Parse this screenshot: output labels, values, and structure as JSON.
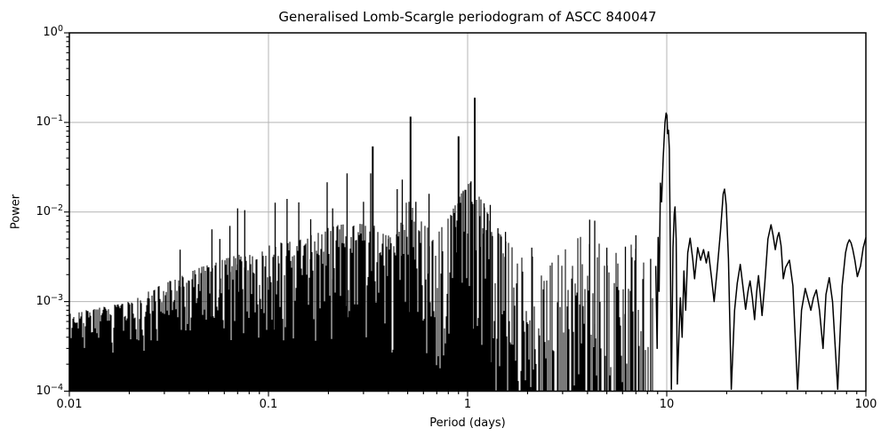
{
  "chart_data": {
    "type": "line",
    "title": "Generalised Lomb-Scargle periodogram of ASCC 840047",
    "xlabel": "Period (days)",
    "ylabel": "Power",
    "xscale": "log",
    "yscale": "log",
    "xlim": [
      0.01,
      100
    ],
    "ylim": [
      0.0001,
      1
    ],
    "grid": true,
    "legend": "none",
    "colors": {
      "line": "#000000",
      "grid": "#b4b4b4",
      "background": "#ffffff",
      "spine": "#000000"
    },
    "x_ticks": [
      {
        "value": 0.01,
        "label": "0.01"
      },
      {
        "value": 0.1,
        "label": "0.1"
      },
      {
        "value": 1,
        "label": "1"
      },
      {
        "value": 10,
        "label": "10"
      },
      {
        "value": 100,
        "label": "100"
      }
    ],
    "y_ticks": [
      {
        "value": 1,
        "base": "10",
        "exp": "0"
      },
      {
        "value": 0.1,
        "base": "10",
        "exp": "−1"
      },
      {
        "value": 0.01,
        "base": "10",
        "exp": "−2"
      },
      {
        "value": 0.001,
        "base": "10",
        "exp": "−3"
      },
      {
        "value": 0.0001,
        "base": "10",
        "exp": "−4"
      }
    ],
    "noise_floor": 0.0001,
    "dense_region": {
      "max_period": 8.8,
      "envelope": [
        [
          0.01,
          0.00075
        ],
        [
          0.014,
          0.00085
        ],
        [
          0.02,
          0.001
        ],
        [
          0.03,
          0.0016
        ],
        [
          0.045,
          0.0024
        ],
        [
          0.06,
          0.003
        ],
        [
          0.08,
          0.0036
        ],
        [
          0.11,
          0.0045
        ],
        [
          0.15,
          0.005
        ],
        [
          0.2,
          0.007
        ],
        [
          0.27,
          0.0075
        ],
        [
          0.35,
          0.007
        ],
        [
          0.42,
          0.005
        ],
        [
          0.5,
          0.014
        ],
        [
          0.58,
          0.008
        ],
        [
          0.7,
          0.0055
        ],
        [
          0.85,
          0.011
        ],
        [
          1.0,
          0.022
        ],
        [
          1.1,
          0.02
        ],
        [
          1.25,
          0.01
        ],
        [
          1.5,
          0.0055
        ],
        [
          2.0,
          0.0042
        ],
        [
          3.0,
          0.004
        ],
        [
          4.2,
          0.0065
        ],
        [
          5.0,
          0.004
        ],
        [
          6.0,
          0.0042
        ],
        [
          7.0,
          0.0045
        ],
        [
          8.0,
          0.0032
        ],
        [
          8.8,
          0.0026
        ]
      ]
    },
    "major_peaks": [
      [
        0.036,
        0.0038
      ],
      [
        0.052,
        0.0064
      ],
      [
        0.057,
        0.005
      ],
      [
        0.064,
        0.007
      ],
      [
        0.07,
        0.011
      ],
      [
        0.076,
        0.0105
      ],
      [
        0.108,
        0.0127
      ],
      [
        0.124,
        0.014
      ],
      [
        0.142,
        0.0128
      ],
      [
        0.163,
        0.0083
      ],
      [
        0.197,
        0.0215
      ],
      [
        0.21,
        0.011
      ],
      [
        0.248,
        0.027
      ],
      [
        0.3,
        0.013
      ],
      [
        0.326,
        0.027
      ],
      [
        0.334,
        0.054
      ],
      [
        0.4,
        0.005
      ],
      [
        0.443,
        0.018
      ],
      [
        0.47,
        0.023
      ],
      [
        0.517,
        0.116
      ],
      [
        0.55,
        0.013
      ],
      [
        0.64,
        0.016
      ],
      [
        0.87,
        0.0068
      ],
      [
        0.9,
        0.07
      ],
      [
        0.95,
        0.0167
      ],
      [
        1.04,
        0.022
      ],
      [
        1.086,
        0.189
      ],
      [
        1.15,
        0.009
      ],
      [
        1.21,
        0.0125
      ],
      [
        1.3,
        0.012
      ],
      [
        1.42,
        0.0066
      ],
      [
        1.55,
        0.006
      ],
      [
        2.1,
        0.004
      ],
      [
        4.1,
        0.0082
      ],
      [
        4.35,
        0.008
      ],
      [
        5.0,
        0.004
      ],
      [
        6.2,
        0.0041
      ],
      [
        7.0,
        0.0055
      ],
      [
        8.3,
        0.003
      ]
    ],
    "smooth_section": [
      [
        8.8,
        0.0025
      ],
      [
        8.95,
        0.0003
      ],
      [
        9.05,
        0.0052
      ],
      [
        9.15,
        0.0013
      ],
      [
        9.3,
        0.021
      ],
      [
        9.42,
        0.013
      ],
      [
        9.6,
        0.04
      ],
      [
        9.8,
        0.1
      ],
      [
        9.93,
        0.127
      ],
      [
        10.02,
        0.12
      ],
      [
        10.1,
        0.075
      ],
      [
        10.2,
        0.082
      ],
      [
        10.3,
        0.05
      ],
      [
        10.42,
        0.004
      ],
      [
        10.55,
        0.000105
      ],
      [
        10.75,
        0.004
      ],
      [
        10.9,
        0.0095
      ],
      [
        11.0,
        0.0114
      ],
      [
        11.15,
        0.005
      ],
      [
        11.3,
        0.00012
      ],
      [
        11.55,
        0.0005
      ],
      [
        11.7,
        0.0011
      ],
      [
        11.95,
        0.0004
      ],
      [
        12.2,
        0.0022
      ],
      [
        12.45,
        0.0008
      ],
      [
        12.75,
        0.0035
      ],
      [
        13.1,
        0.0051
      ],
      [
        13.5,
        0.003
      ],
      [
        13.8,
        0.0018
      ],
      [
        14.3,
        0.004
      ],
      [
        14.8,
        0.0029
      ],
      [
        15.3,
        0.0038
      ],
      [
        15.8,
        0.0027
      ],
      [
        16.2,
        0.0036
      ],
      [
        16.8,
        0.0018
      ],
      [
        17.3,
        0.001
      ],
      [
        17.9,
        0.0022
      ],
      [
        18.6,
        0.006
      ],
      [
        19.2,
        0.016
      ],
      [
        19.5,
        0.018
      ],
      [
        19.9,
        0.012
      ],
      [
        20.4,
        0.003
      ],
      [
        21.1,
        0.000105
      ],
      [
        21.9,
        0.0008
      ],
      [
        22.6,
        0.0016
      ],
      [
        23.4,
        0.0026
      ],
      [
        24.1,
        0.0015
      ],
      [
        24.9,
        0.00082
      ],
      [
        25.6,
        0.0013
      ],
      [
        26.2,
        0.0017
      ],
      [
        26.9,
        0.0011
      ],
      [
        27.6,
        0.00063
      ],
      [
        28.3,
        0.0013
      ],
      [
        28.9,
        0.00195
      ],
      [
        29.5,
        0.0012
      ],
      [
        30.1,
        0.0007
      ],
      [
        31.0,
        0.0015
      ],
      [
        32.2,
        0.005
      ],
      [
        33.4,
        0.0072
      ],
      [
        34.2,
        0.0055
      ],
      [
        35.1,
        0.0038
      ],
      [
        36.0,
        0.0053
      ],
      [
        36.6,
        0.0059
      ],
      [
        37.5,
        0.0042
      ],
      [
        38.5,
        0.0018
      ],
      [
        39.5,
        0.0024
      ],
      [
        41.3,
        0.0029
      ],
      [
        43.0,
        0.0015
      ],
      [
        45.4,
        0.000105
      ],
      [
        47.5,
        0.0008
      ],
      [
        49.6,
        0.0014
      ],
      [
        51.0,
        0.0011
      ],
      [
        52.9,
        0.0008
      ],
      [
        54.5,
        0.0011
      ],
      [
        56.4,
        0.00135
      ],
      [
        58.5,
        0.0008
      ],
      [
        60.9,
        0.0003
      ],
      [
        63.0,
        0.0012
      ],
      [
        65.5,
        0.00185
      ],
      [
        68.0,
        0.001
      ],
      [
        72.2,
        0.000105
      ],
      [
        76.0,
        0.0015
      ],
      [
        79.0,
        0.0035
      ],
      [
        80.8,
        0.0044
      ],
      [
        82.6,
        0.0049
      ],
      [
        84.3,
        0.0045
      ],
      [
        86.0,
        0.0038
      ],
      [
        88.0,
        0.0029
      ],
      [
        90.6,
        0.0019
      ],
      [
        94.0,
        0.0025
      ],
      [
        97.0,
        0.004
      ],
      [
        100.0,
        0.0052
      ]
    ]
  }
}
